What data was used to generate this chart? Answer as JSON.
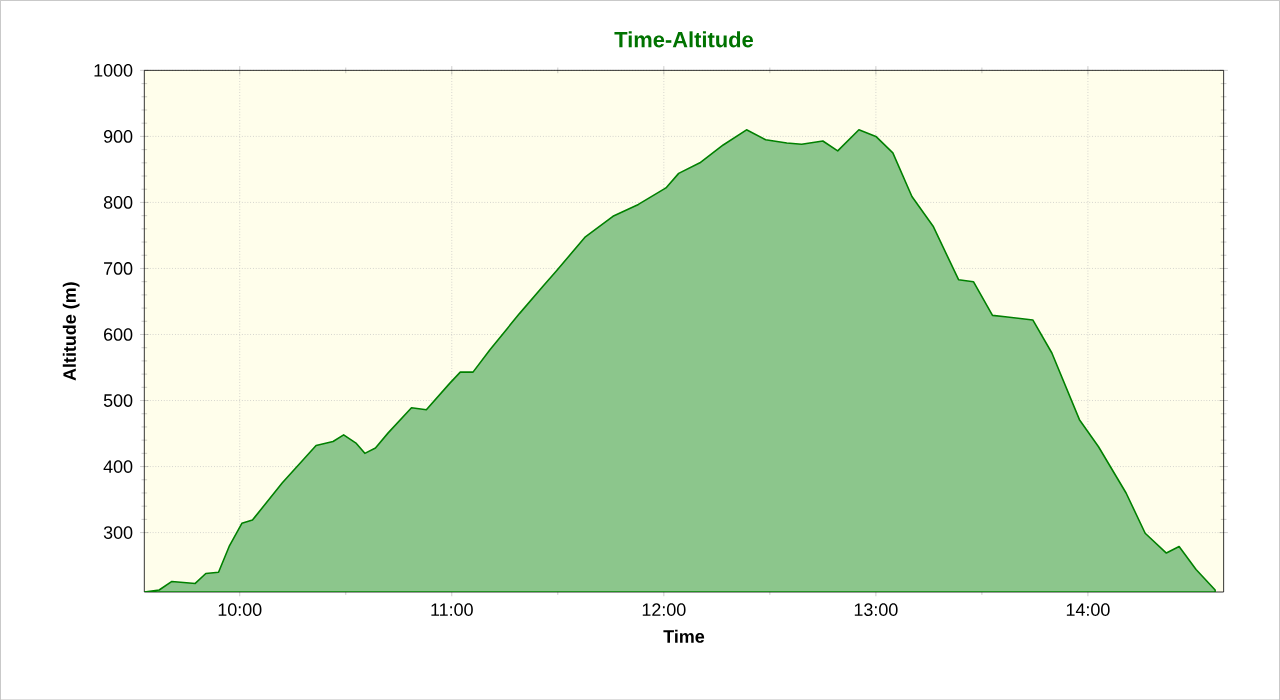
{
  "chart_data": {
    "type": "area",
    "title": "Time-Altitude",
    "xlabel": "Time",
    "ylabel": "Altitude (m)",
    "x": [
      9.55,
      9.62,
      9.68,
      9.79,
      9.84,
      9.9,
      9.95,
      10.01,
      10.06,
      10.2,
      10.36,
      10.44,
      10.49,
      10.55,
      10.59,
      10.64,
      10.7,
      10.81,
      10.88,
      10.99,
      11.04,
      11.1,
      11.18,
      11.32,
      11.43,
      11.49,
      11.63,
      11.76,
      11.88,
      12.01,
      12.07,
      12.17,
      12.28,
      12.39,
      12.48,
      12.58,
      12.65,
      12.75,
      12.82,
      12.92,
      13.0,
      13.08,
      13.17,
      13.27,
      13.39,
      13.46,
      13.55,
      13.61,
      13.74,
      13.83,
      13.96,
      14.05,
      14.18,
      14.27,
      14.37,
      14.43,
      14.51,
      14.6
    ],
    "values": [
      210,
      213,
      226,
      223,
      238,
      240,
      279,
      314,
      319,
      375,
      432,
      438,
      448,
      435,
      420,
      428,
      451,
      489,
      486,
      526,
      543,
      543,
      577,
      632,
      673,
      695,
      748,
      779,
      797,
      822,
      844,
      860,
      887,
      910,
      895,
      890,
      888,
      893,
      878,
      910,
      900,
      875,
      809,
      764,
      683,
      680,
      629,
      627,
      622,
      572,
      471,
      430,
      360,
      299,
      269,
      279,
      244,
      213
    ],
    "color": "#008000",
    "xlim": [
      9.55,
      14.64
    ],
    "ylim": [
      210,
      1000
    ],
    "xticks": [
      {
        "value": 10,
        "label": "10:00"
      },
      {
        "value": 11,
        "label": "11:00"
      },
      {
        "value": 12,
        "label": "12:00"
      },
      {
        "value": 13,
        "label": "13:00"
      },
      {
        "value": 14,
        "label": "14:00"
      }
    ],
    "yticks": [
      300,
      400,
      500,
      600,
      700,
      800,
      900,
      1000
    ],
    "grid": true
  }
}
